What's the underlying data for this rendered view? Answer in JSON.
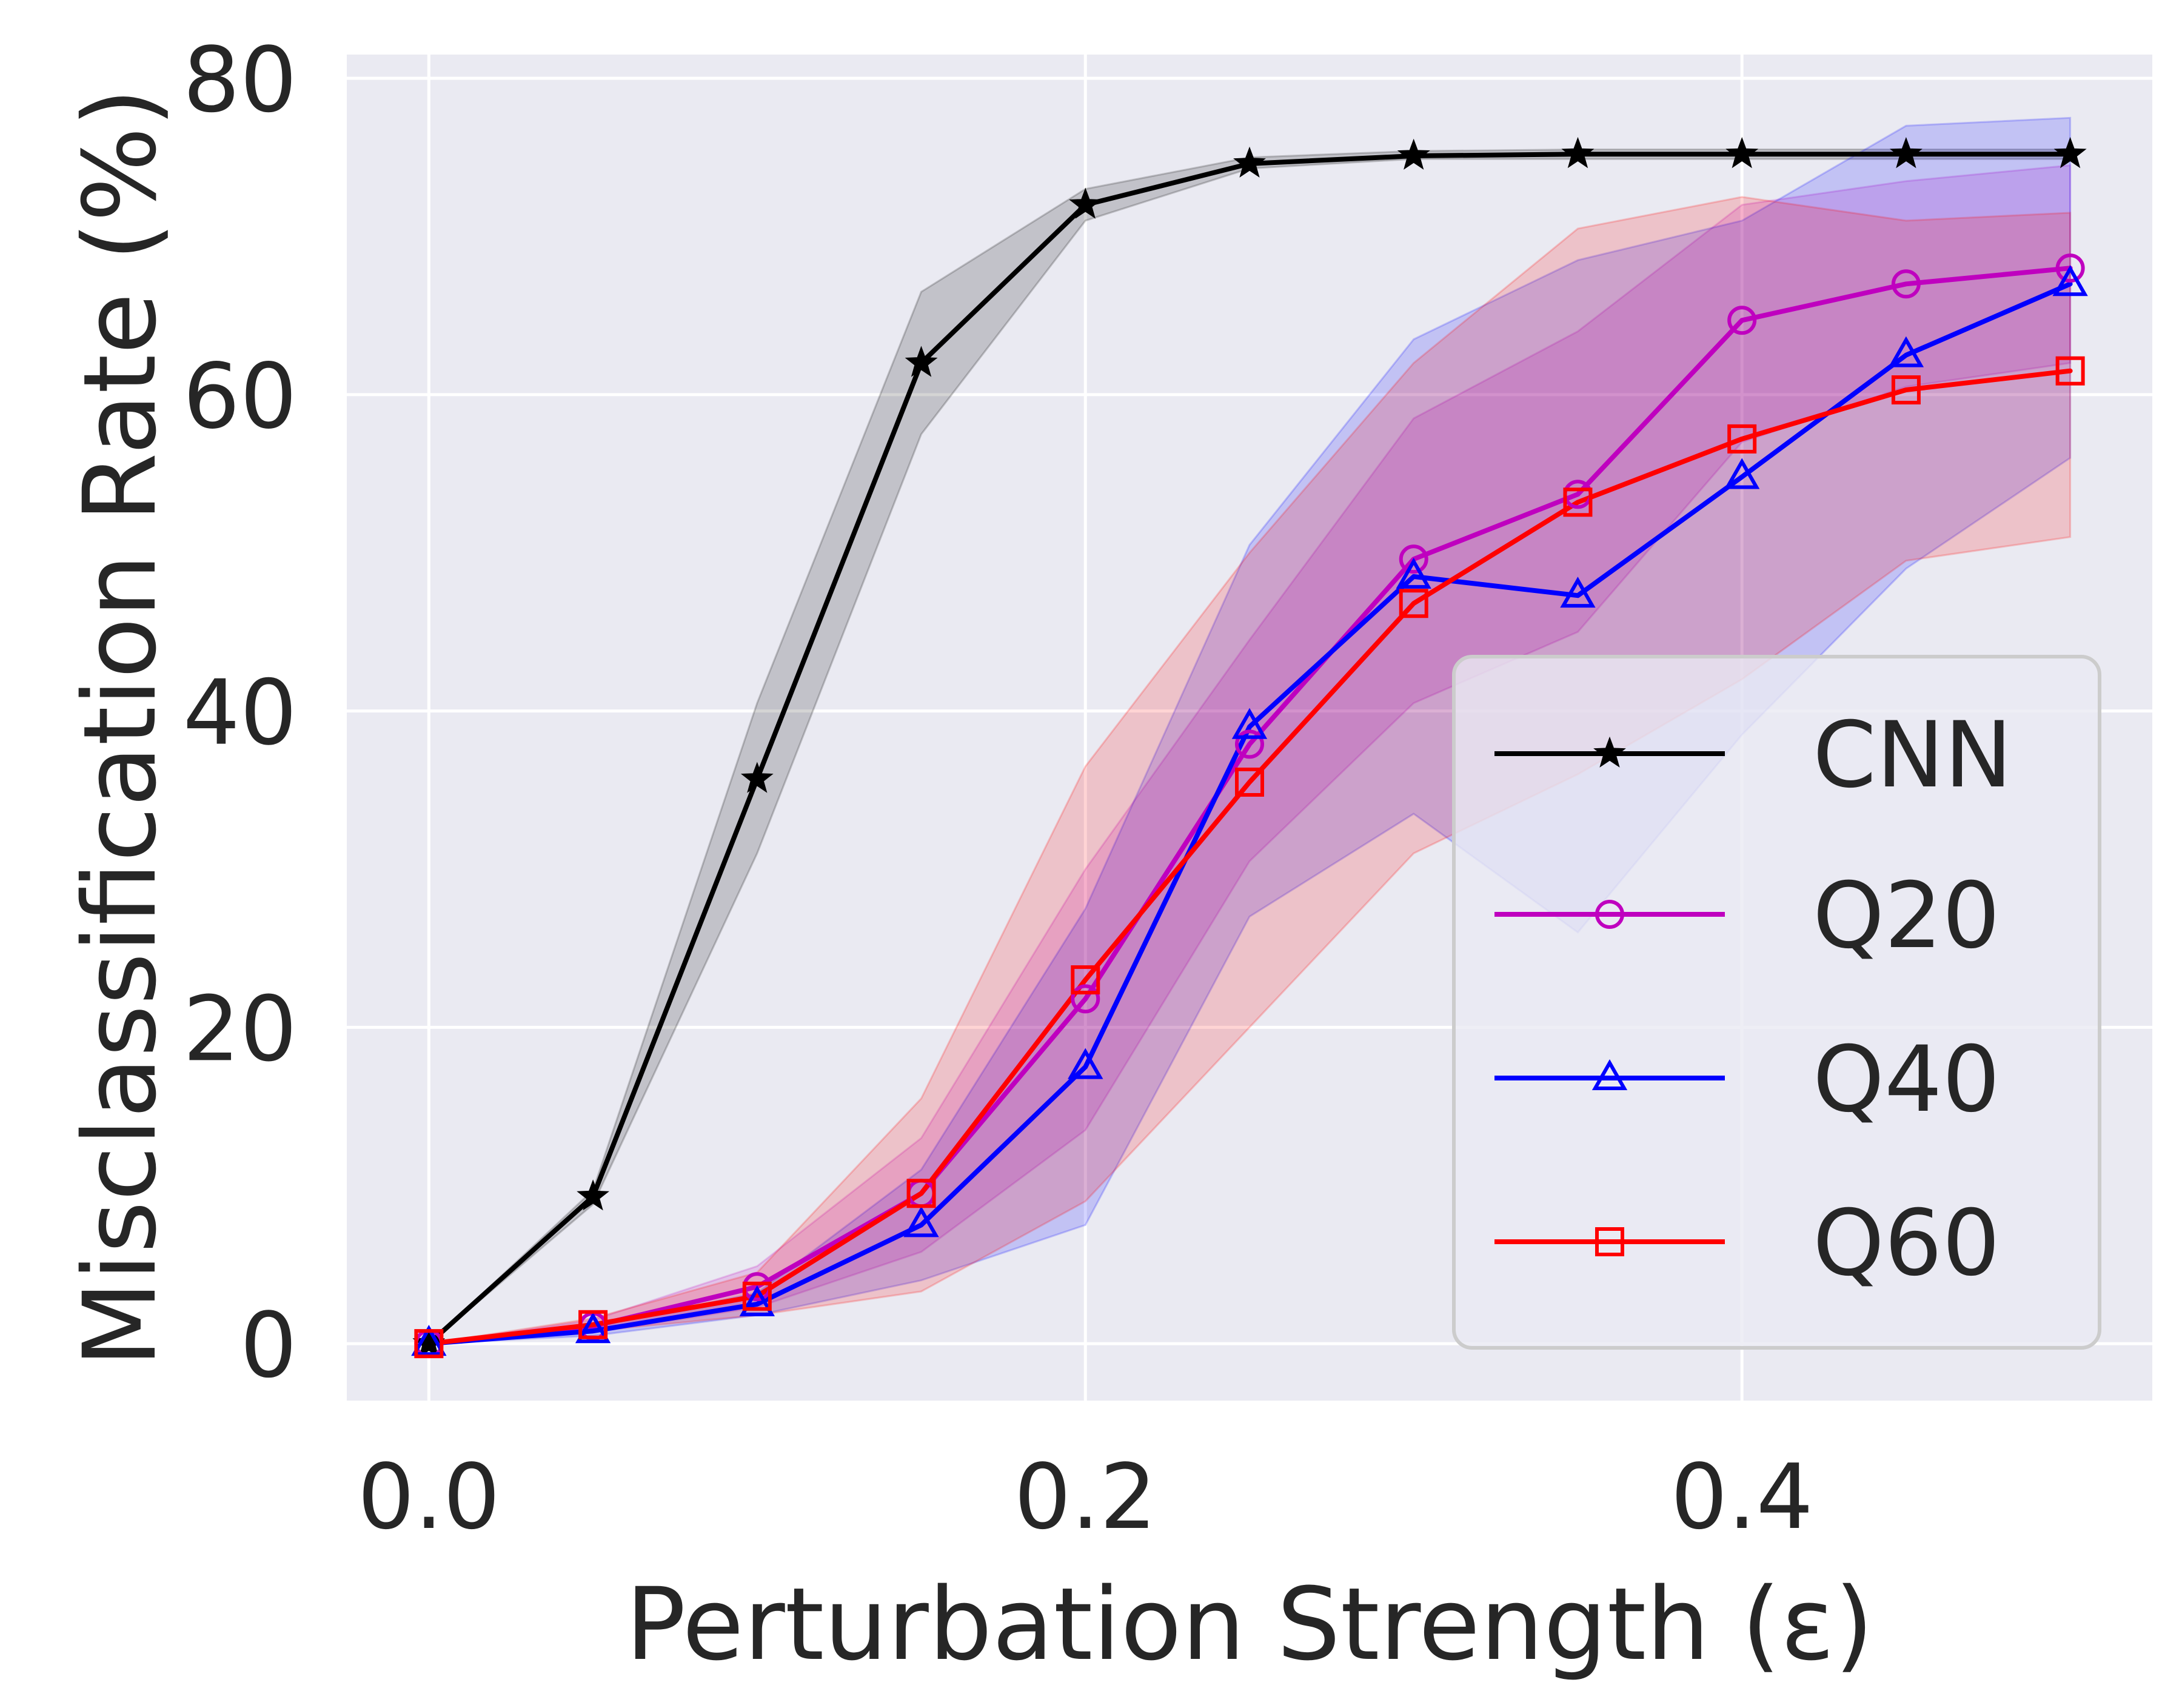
{
  "chart_data": {
    "type": "line",
    "title": "",
    "xlabel": "Perturbation Strength (ε)",
    "ylabel": "Misclassification Rate (%)",
    "xlim": [
      -0.025,
      0.525
    ],
    "ylim": [
      -3.6,
      81.5
    ],
    "xticks": [
      0.0,
      0.2,
      0.4
    ],
    "xtick_labels": [
      "0.0",
      "0.2",
      "0.4"
    ],
    "yticks": [
      0,
      20,
      40,
      60,
      80
    ],
    "ytick_labels": [
      "0",
      "20",
      "40",
      "60",
      "80"
    ],
    "grid": true,
    "legend_position": "lower right",
    "x": [
      0.0,
      0.05,
      0.1,
      0.15,
      0.2,
      0.25,
      0.3,
      0.35,
      0.4,
      0.45,
      0.5
    ],
    "series": [
      {
        "name": "CNN",
        "color": "#000000",
        "marker": "star",
        "values": [
          0.0,
          9.3,
          35.7,
          62.0,
          72.0,
          74.6,
          75.1,
          75.2,
          75.2,
          75.2,
          75.2
        ],
        "lower": [
          0.0,
          8.8,
          31.0,
          57.5,
          71.0,
          74.3,
          74.9,
          74.9,
          74.9,
          74.9,
          74.9
        ],
        "upper": [
          0.0,
          9.7,
          40.5,
          66.5,
          73.0,
          75.0,
          75.4,
          75.5,
          75.5,
          75.5,
          75.5
        ]
      },
      {
        "name": "Q20",
        "color": "#bf00bf",
        "marker": "circle",
        "values": [
          0.0,
          1.1,
          3.6,
          9.5,
          21.8,
          37.9,
          49.6,
          53.7,
          64.7,
          67.0,
          68.0
        ],
        "lower": [
          0.0,
          0.7,
          2.3,
          5.8,
          13.5,
          30.5,
          40.5,
          45.0,
          57.0,
          60.5,
          62.0
        ],
        "upper": [
          0.0,
          1.5,
          4.9,
          13.0,
          30.0,
          44.5,
          58.5,
          64.0,
          72.0,
          73.5,
          74.5
        ]
      },
      {
        "name": "Q40",
        "color": "#0000ff",
        "marker": "triangle",
        "values": [
          0.0,
          0.8,
          2.5,
          7.5,
          17.5,
          39.0,
          48.5,
          47.3,
          54.8,
          62.5,
          67.0
        ],
        "lower": [
          0.0,
          0.5,
          1.8,
          4.0,
          7.5,
          27.0,
          33.5,
          26.0,
          38.5,
          49.0,
          56.0
        ],
        "upper": [
          0.0,
          1.1,
          3.2,
          11.0,
          27.5,
          50.5,
          63.5,
          68.5,
          71.0,
          77.0,
          77.5
        ]
      },
      {
        "name": "Q60",
        "color": "#ff0000",
        "marker": "square",
        "values": [
          0.0,
          1.2,
          3.0,
          9.5,
          23.0,
          35.5,
          46.8,
          53.2,
          57.2,
          60.3,
          61.5
        ],
        "lower": [
          0.0,
          0.8,
          1.8,
          3.3,
          9.0,
          20.0,
          31.0,
          36.0,
          42.0,
          49.5,
          51.0
        ],
        "upper": [
          0.0,
          1.6,
          4.5,
          15.5,
          36.5,
          50.0,
          62.0,
          70.5,
          72.5,
          71.0,
          71.5
        ]
      }
    ]
  }
}
